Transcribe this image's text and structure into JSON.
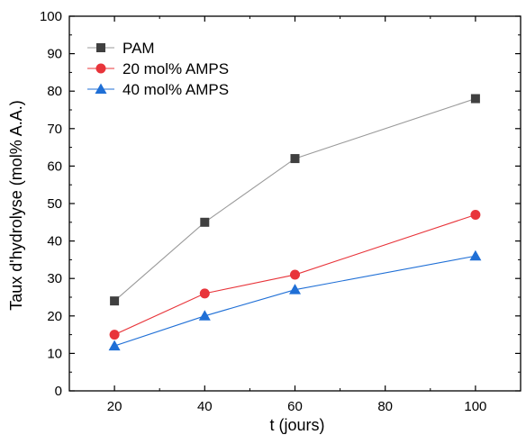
{
  "chart_data": {
    "type": "line",
    "title": "",
    "xlabel": "t (jours)",
    "ylabel": "Taux d'hydrolyse (mol% A.A.)",
    "xlim": [
      10,
      110
    ],
    "ylim": [
      0,
      100
    ],
    "xticks": [
      20,
      40,
      60,
      80,
      100
    ],
    "yticks": [
      0,
      10,
      20,
      30,
      40,
      50,
      60,
      70,
      80,
      90,
      100
    ],
    "grid": false,
    "legend_position": "top-left",
    "x": [
      20,
      40,
      60,
      100
    ],
    "series": [
      {
        "name": "PAM",
        "values": [
          24,
          45,
          62,
          78
        ],
        "color": "#404040",
        "line_color": "#9a9a9a",
        "marker": "square"
      },
      {
        "name": "20 mol% AMPS",
        "values": [
          15,
          26,
          31,
          47
        ],
        "color": "#e8343a",
        "line_color": "#e8343a",
        "marker": "circle"
      },
      {
        "name": "40 mol% AMPS",
        "values": [
          12,
          20,
          27,
          36
        ],
        "color": "#1f6fd6",
        "line_color": "#1f6fd6",
        "marker": "triangle"
      }
    ]
  }
}
